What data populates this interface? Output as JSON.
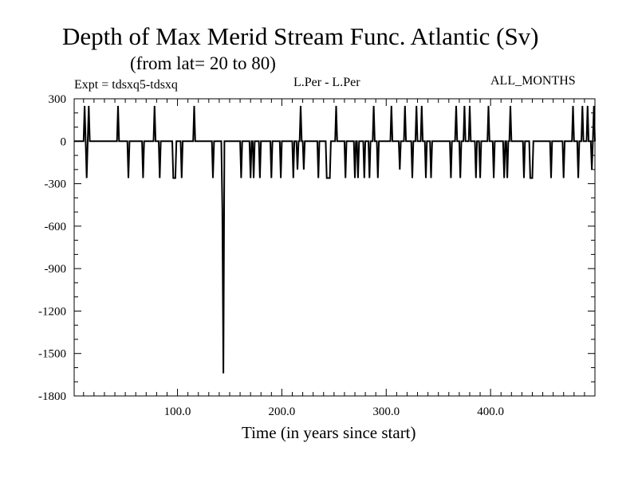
{
  "chart_data": {
    "type": "line",
    "title": "Depth of Max Merid Stream Func. Atlantic (Sv)",
    "subtitle": "(from lat= 20 to 80)",
    "annotations": {
      "left": "Expt = tdsxq5-tdsxq",
      "center": "L.Per - L.Per",
      "right": "ALL_MONTHS"
    },
    "xlabel": "Time (in years since start)",
    "ylabel": "",
    "xlim": [
      1,
      500
    ],
    "ylim": [
      -1800,
      300
    ],
    "x_ticks": [
      100,
      200,
      300,
      400
    ],
    "x_tick_labels": [
      "100.0",
      "200.0",
      "300.0",
      "400.0"
    ],
    "y_ticks": [
      300,
      0,
      -300,
      -600,
      -900,
      -1200,
      -1500,
      -1800
    ],
    "y_tick_labels": [
      "300",
      "0",
      "-300",
      "-600",
      "-900",
      "-1200",
      "-1500",
      "-1800"
    ],
    "grid": false,
    "series": [
      {
        "name": "",
        "baseline": 0,
        "points": [
          [
            1,
            0
          ],
          [
            10,
            0
          ],
          [
            11,
            250
          ],
          [
            12,
            0
          ],
          [
            13,
            -260
          ],
          [
            14,
            0
          ],
          [
            15,
            250
          ],
          [
            16,
            0
          ],
          [
            18,
            0
          ],
          [
            42,
            0
          ],
          [
            43,
            250
          ],
          [
            44,
            0
          ],
          [
            52,
            0
          ],
          [
            53,
            -260
          ],
          [
            54,
            0
          ],
          [
            66,
            0
          ],
          [
            67,
            -260
          ],
          [
            68,
            0
          ],
          [
            77,
            0
          ],
          [
            78,
            250
          ],
          [
            79,
            0
          ],
          [
            82,
            0
          ],
          [
            83,
            -260
          ],
          [
            84,
            0
          ],
          [
            95,
            0
          ],
          [
            96,
            -260
          ],
          [
            98,
            -260
          ],
          [
            99,
            0
          ],
          [
            103,
            0
          ],
          [
            104,
            -260
          ],
          [
            105,
            0
          ],
          [
            115,
            0
          ],
          [
            116,
            250
          ],
          [
            117,
            0
          ],
          [
            133,
            0
          ],
          [
            134,
            -260
          ],
          [
            135,
            0
          ],
          [
            142,
            0
          ],
          [
            143,
            -480
          ],
          [
            144,
            -1640
          ],
          [
            145,
            0
          ],
          [
            160,
            0
          ],
          [
            161,
            -260
          ],
          [
            162,
            0
          ],
          [
            169,
            0
          ],
          [
            170,
            -260
          ],
          [
            171,
            0
          ],
          [
            172,
            0
          ],
          [
            173,
            -260
          ],
          [
            174,
            0
          ],
          [
            178,
            0
          ],
          [
            179,
            -260
          ],
          [
            180,
            0
          ],
          [
            189,
            0
          ],
          [
            190,
            -260
          ],
          [
            191,
            0
          ],
          [
            198,
            0
          ],
          [
            199,
            -260
          ],
          [
            200,
            0
          ],
          [
            210,
            0
          ],
          [
            211,
            -260
          ],
          [
            212,
            0
          ],
          [
            214,
            0
          ],
          [
            215,
            -200
          ],
          [
            216,
            0
          ],
          [
            217,
            0
          ],
          [
            218,
            250
          ],
          [
            219,
            0
          ],
          [
            220,
            0
          ],
          [
            221,
            -200
          ],
          [
            222,
            0
          ],
          [
            234,
            0
          ],
          [
            235,
            -260
          ],
          [
            236,
            0
          ],
          [
            242,
            0
          ],
          [
            243,
            -260
          ],
          [
            246,
            -260
          ],
          [
            247,
            0
          ],
          [
            251,
            0
          ],
          [
            252,
            250
          ],
          [
            253,
            0
          ],
          [
            260,
            0
          ],
          [
            261,
            -260
          ],
          [
            262,
            0
          ],
          [
            269,
            0
          ],
          [
            270,
            -260
          ],
          [
            271,
            0
          ],
          [
            272,
            0
          ],
          [
            273,
            -260
          ],
          [
            274,
            0
          ],
          [
            278,
            0
          ],
          [
            279,
            -260
          ],
          [
            280,
            0
          ],
          [
            283,
            0
          ],
          [
            284,
            -260
          ],
          [
            285,
            0
          ],
          [
            287,
            0
          ],
          [
            288,
            250
          ],
          [
            289,
            0
          ],
          [
            291,
            0
          ],
          [
            292,
            -260
          ],
          [
            293,
            0
          ],
          [
            304,
            0
          ],
          [
            305,
            250
          ],
          [
            306,
            0
          ],
          [
            312,
            0
          ],
          [
            313,
            -200
          ],
          [
            314,
            0
          ],
          [
            317,
            0
          ],
          [
            318,
            250
          ],
          [
            319,
            0
          ],
          [
            324,
            0
          ],
          [
            325,
            -260
          ],
          [
            326,
            0
          ],
          [
            328,
            0
          ],
          [
            329,
            250
          ],
          [
            330,
            0
          ],
          [
            333,
            0
          ],
          [
            334,
            250
          ],
          [
            335,
            0
          ],
          [
            337,
            0
          ],
          [
            338,
            -260
          ],
          [
            339,
            0
          ],
          [
            342,
            0
          ],
          [
            343,
            -260
          ],
          [
            344,
            0
          ],
          [
            361,
            0
          ],
          [
            362,
            -260
          ],
          [
            363,
            0
          ],
          [
            366,
            0
          ],
          [
            367,
            250
          ],
          [
            368,
            0
          ],
          [
            370,
            0
          ],
          [
            371,
            -260
          ],
          [
            372,
            0
          ],
          [
            374,
            0
          ],
          [
            375,
            250
          ],
          [
            376,
            0
          ],
          [
            379,
            0
          ],
          [
            380,
            250
          ],
          [
            381,
            0
          ],
          [
            385,
            0
          ],
          [
            386,
            -260
          ],
          [
            387,
            0
          ],
          [
            389,
            0
          ],
          [
            390,
            -260
          ],
          [
            391,
            0
          ],
          [
            397,
            0
          ],
          [
            398,
            250
          ],
          [
            399,
            0
          ],
          [
            402,
            0
          ],
          [
            403,
            -260
          ],
          [
            404,
            0
          ],
          [
            412,
            0
          ],
          [
            413,
            -260
          ],
          [
            414,
            0
          ],
          [
            415,
            0
          ],
          [
            416,
            -260
          ],
          [
            417,
            0
          ],
          [
            418,
            0
          ],
          [
            419,
            250
          ],
          [
            420,
            0
          ],
          [
            431,
            0
          ],
          [
            432,
            -260
          ],
          [
            433,
            0
          ],
          [
            437,
            0
          ],
          [
            438,
            -260
          ],
          [
            440,
            -260
          ],
          [
            441,
            0
          ],
          [
            457,
            0
          ],
          [
            458,
            -260
          ],
          [
            459,
            0
          ],
          [
            469,
            0
          ],
          [
            470,
            -260
          ],
          [
            471,
            0
          ],
          [
            478,
            0
          ],
          [
            479,
            250
          ],
          [
            480,
            0
          ],
          [
            483,
            0
          ],
          [
            484,
            -260
          ],
          [
            485,
            0
          ],
          [
            487,
            0
          ],
          [
            488,
            250
          ],
          [
            489,
            0
          ],
          [
            492,
            0
          ],
          [
            493,
            250
          ],
          [
            494,
            0
          ],
          [
            496,
            0
          ],
          [
            497,
            -200
          ],
          [
            498,
            0
          ],
          [
            499,
            250
          ],
          [
            500,
            0
          ]
        ]
      }
    ]
  }
}
